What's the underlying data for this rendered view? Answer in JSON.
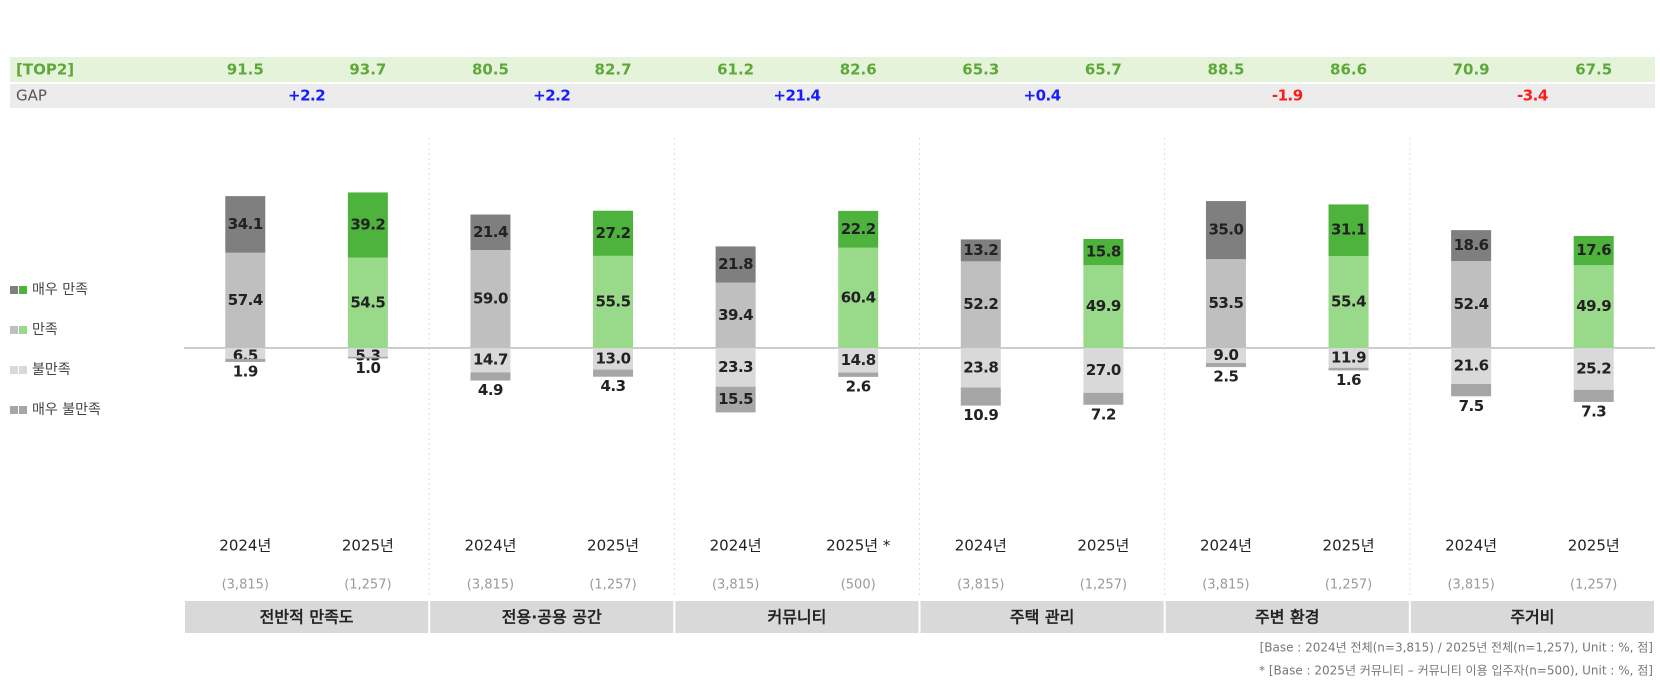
{
  "chart_data": {
    "type": "bar",
    "categories": [
      "2024년",
      "2025년",
      "2024년",
      "2025년",
      "2024년",
      "2025년 *",
      "2024년",
      "2025년",
      "2024년",
      "2025년",
      "2024년",
      "2025년"
    ],
    "sample_sizes": [
      "(3,815)",
      "(1,257)",
      "(3,815)",
      "(1,257)",
      "(3,815)",
      "(500)",
      "(3,815)",
      "(1,257)",
      "(3,815)",
      "(1,257)",
      "(3,815)",
      "(1,257)"
    ],
    "groups": [
      "전반적 만족도",
      "전용·공용 공간",
      "커뮤니티",
      "주택 관리",
      "주변 환경",
      "주거비"
    ],
    "series": [
      {
        "name": "매우 만족",
        "direction": "up",
        "colors": [
          "#7f7f7f",
          "#4db33d"
        ],
        "values": [
          34.1,
          39.2,
          21.4,
          27.2,
          21.8,
          22.2,
          13.2,
          15.8,
          35.0,
          31.1,
          18.6,
          17.6
        ],
        "value_labels": [
          "34.1",
          "39.2",
          "21.4",
          "27.2",
          "21.8",
          "22.2",
          "13.2",
          "15.8",
          "35.0",
          "31.1",
          "18.6",
          "17.6"
        ]
      },
      {
        "name": "만족",
        "direction": "up",
        "colors": [
          "#bfbfbf",
          "#99d98a"
        ],
        "values": [
          57.4,
          54.5,
          59.0,
          55.5,
          39.4,
          60.4,
          52.2,
          49.9,
          53.5,
          55.4,
          52.4,
          49.9
        ],
        "value_labels": [
          "57.4",
          "54.5",
          "59.0",
          "55.5",
          "39.4",
          "60.4",
          "52.2",
          "49.9",
          "53.5",
          "55.4",
          "52.4",
          "49.9"
        ]
      },
      {
        "name": "불만족",
        "direction": "down",
        "colors": [
          "#d9d9d9",
          "#d9d9d9"
        ],
        "values": [
          6.5,
          5.3,
          14.7,
          13.0,
          23.3,
          14.8,
          23.8,
          27.0,
          9.0,
          11.9,
          21.6,
          25.2
        ],
        "value_labels": [
          "6.5",
          "5.3",
          "14.7",
          "13.0",
          "23.3",
          "14.8",
          "23.8",
          "27.0",
          "9.0",
          "11.9",
          "21.6",
          "25.2"
        ]
      },
      {
        "name": "매우 불만족",
        "direction": "down",
        "colors": [
          "#a6a6a6",
          "#a6a6a6"
        ],
        "values": [
          1.9,
          1.0,
          4.9,
          4.3,
          15.5,
          2.6,
          10.9,
          7.2,
          2.5,
          1.6,
          7.5,
          7.3
        ],
        "value_labels": [
          "1.9",
          "1.0",
          "4.9",
          "4.3",
          "15.5",
          "2.6",
          "10.9",
          "7.2",
          "2.5",
          "1.6",
          "7.5",
          "7.3"
        ]
      }
    ],
    "top2": {
      "label": "[TOP2]",
      "values": [
        91.5,
        93.7,
        80.5,
        82.7,
        61.2,
        82.6,
        65.3,
        65.7,
        88.5,
        86.6,
        70.9,
        67.5
      ]
    },
    "gap": {
      "label": "GAP",
      "positive_color": "#1a1aff",
      "negative_color": "#ff1a1a",
      "values": [
        2.2,
        2.2,
        21.4,
        0.4,
        -1.9,
        -3.4
      ],
      "value_labels": [
        "+2.2",
        "+2.2",
        "+21.4",
        "+0.4",
        "-1.9",
        "-3.4"
      ]
    },
    "notes": [
      "[Base : 2024년 전체(n=3,815) / 2025년 전체(n=1,257), Unit : %, 점]",
      "* [Base : 2025년 커뮤니티 – 커뮤니티 이용 입주자(n=500), Unit : %, 점]"
    ]
  }
}
